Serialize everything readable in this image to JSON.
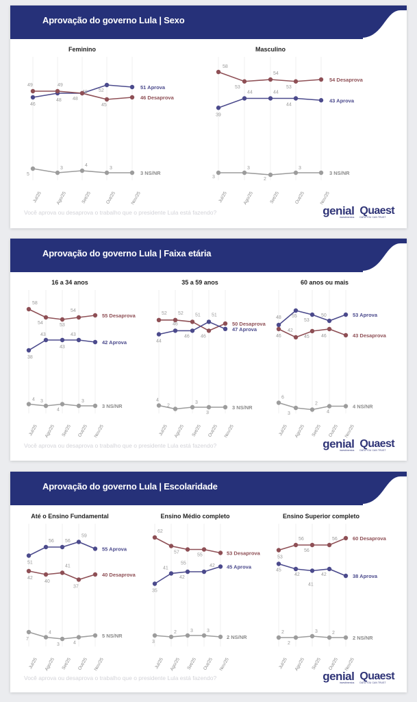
{
  "colors": {
    "header_bg": "#263179",
    "aprova": "#4b4a8c",
    "desaprova": "#8e4f55",
    "nsnr": "#9c9c9c",
    "grid": "#efefef",
    "label_text": "#9a9a9a"
  },
  "months": [
    "Jul/25",
    "Ago/25",
    "Set/25",
    "Out/25",
    "Nov/25"
  ],
  "question": "Você aprova ou desaprova o trabalho que o presidente Lula está fazendo?",
  "logos": {
    "genial": "genial",
    "genial_sub": "investimentos",
    "quaest": "Quaest",
    "quaest_sub": "DATA YOU CAN TRUST"
  },
  "panels": [
    {
      "title": "Aprovação do governo Lula | Sexo"
    },
    {
      "title": "Aprovação do governo Lula | Faixa etária"
    },
    {
      "title": "Aprovação do governo Lula | Escolaridade"
    }
  ],
  "chart_data": [
    {
      "type": "line",
      "panel": "Sexo",
      "title": "Feminino",
      "categories": [
        "Jul/25",
        "Ago/25",
        "Set/25",
        "Out/25",
        "Nov/25"
      ],
      "series": [
        {
          "name": "Aprova",
          "values": [
            46,
            48,
            48,
            52,
            51
          ],
          "end_label": "51 Aprova"
        },
        {
          "name": "Desaprova",
          "values": [
            49,
            49,
            48,
            45,
            46
          ],
          "end_label": "46 Desaprova"
        },
        {
          "name": "NS/NR",
          "values": [
            5,
            3,
            4,
            3,
            3
          ],
          "end_label": "3 NS/NR"
        }
      ]
    },
    {
      "type": "line",
      "panel": "Sexo",
      "title": "Masculino",
      "categories": [
        "Jul/25",
        "Ago/25",
        "Set/25",
        "Out/25",
        "Nov/25"
      ],
      "series": [
        {
          "name": "Desaprova",
          "values": [
            58,
            53,
            54,
            53,
            54
          ],
          "end_label": "54 Desaprova"
        },
        {
          "name": "Aprova",
          "values": [
            39,
            44,
            44,
            44,
            43
          ],
          "end_label": "43 Aprova"
        },
        {
          "name": "NS/NR",
          "values": [
            3,
            3,
            2,
            3,
            3
          ],
          "end_label": "3 NS/NR"
        }
      ]
    },
    {
      "type": "line",
      "panel": "Faixa etária",
      "title": "16 a 34 anos",
      "categories": [
        "Jul/25",
        "Ago/25",
        "Set/25",
        "Out/25",
        "Nov/25"
      ],
      "series": [
        {
          "name": "Desaprova",
          "values": [
            58,
            54,
            53,
            54,
            55
          ],
          "end_label": "55 Desaprova"
        },
        {
          "name": "Aprova",
          "values": [
            38,
            43,
            43,
            43,
            42
          ],
          "end_label": "42 Aprova"
        },
        {
          "name": "NS/NR",
          "values": [
            4,
            3,
            4,
            3,
            3
          ],
          "end_label": "3 NS/NR"
        }
      ]
    },
    {
      "type": "line",
      "panel": "Faixa etária",
      "title": "35 a 59 anos",
      "categories": [
        "Jul/25",
        "Ago/25",
        "Set/25",
        "Out/25",
        "Nov/25"
      ],
      "series": [
        {
          "name": "Desaprova",
          "values": [
            52,
            52,
            51,
            46,
            50
          ],
          "end_label": "50 Desaprova"
        },
        {
          "name": "Aprova",
          "values": [
            44,
            46,
            46,
            51,
            47
          ],
          "end_label": "47 Aprova"
        },
        {
          "name": "NS/NR",
          "values": [
            4,
            2,
            3,
            3,
            3
          ],
          "end_label": "3 NS/NR"
        }
      ]
    },
    {
      "type": "line",
      "panel": "Faixa etária",
      "title": "60 anos ou mais",
      "categories": [
        "Jul/25",
        "Ago/25",
        "Set/25",
        "Out/25",
        "Nov/25"
      ],
      "series": [
        {
          "name": "Aprova",
          "values": [
            48,
            55,
            53,
            50,
            53
          ],
          "end_label": "53 Aprova"
        },
        {
          "name": "Desaprova",
          "values": [
            46,
            42,
            45,
            46,
            43
          ],
          "end_label": "43 Desaprova"
        },
        {
          "name": "NS/NR",
          "values": [
            6,
            3,
            2,
            4,
            4
          ],
          "end_label": "4 NS/NR"
        }
      ]
    },
    {
      "type": "line",
      "panel": "Escolaridade",
      "title": "Até o Ensino Fundamental",
      "categories": [
        "Jul/25",
        "Ago/25",
        "Set/25",
        "Out/25",
        "Nov/25"
      ],
      "series": [
        {
          "name": "Aprova",
          "values": [
            51,
            56,
            56,
            59,
            55
          ],
          "end_label": "55 Aprova"
        },
        {
          "name": "Desaprova",
          "values": [
            42,
            40,
            41,
            37,
            40
          ],
          "end_label": "40 Desaprova"
        },
        {
          "name": "NS/NR",
          "values": [
            7,
            4,
            3,
            4,
            5
          ],
          "end_label": "5 NS/NR"
        }
      ]
    },
    {
      "type": "line",
      "panel": "Escolaridade",
      "title": "Ensino Médio completo",
      "categories": [
        "Jul/25",
        "Ago/25",
        "Set/25",
        "Out/25",
        "Nov/25"
      ],
      "series": [
        {
          "name": "Desaprova",
          "values": [
            62,
            57,
            55,
            55,
            53
          ],
          "end_label": "53 Desaprova"
        },
        {
          "name": "Aprova",
          "values": [
            35,
            41,
            42,
            42,
            45
          ],
          "end_label": "45 Aprova"
        },
        {
          "name": "NS/NR",
          "values": [
            3,
            2,
            3,
            3,
            2
          ],
          "end_label": "2 NS/NR"
        }
      ]
    },
    {
      "type": "line",
      "panel": "Escolaridade",
      "title": "Ensino Superior completo",
      "categories": [
        "Jul/25",
        "Ago/25",
        "Set/25",
        "Out/25",
        "Nov/25"
      ],
      "series": [
        {
          "name": "Desaprova",
          "values": [
            53,
            56,
            56,
            56,
            60
          ],
          "end_label": "60 Desaprova"
        },
        {
          "name": "Aprova",
          "values": [
            45,
            42,
            41,
            42,
            38
          ],
          "end_label": "38 Aprova"
        },
        {
          "name": "NS/NR",
          "values": [
            2,
            2,
            3,
            2,
            2
          ],
          "end_label": "2 NS/NR"
        }
      ]
    }
  ]
}
